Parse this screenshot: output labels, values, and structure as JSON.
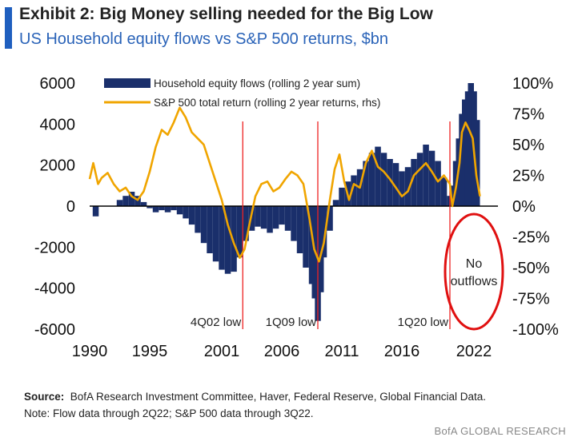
{
  "header": {
    "title": "Exhibit 2: Big Money selling needed for the Big Low",
    "subtitle": "US Household equity flows vs S&P 500 returns, $bn"
  },
  "footer": {
    "source_label": "Source:",
    "source_text": "BofA Research Investment Committee, Haver, Federal Reserve, Global Financial Data.",
    "note": "Note: Flow data through 2Q22;  S&P 500 data through 3Q22.",
    "brand": "BofA GLOBAL RESEARCH"
  },
  "chart_data": {
    "type": "bar",
    "title": "",
    "xlabel": "",
    "ylabel": "",
    "xlim": [
      1990,
      2024
    ],
    "ylim": [
      -6000,
      6000
    ],
    "y2lim": [
      -100,
      100
    ],
    "x_ticks": [
      "1990",
      "1995",
      "2001",
      "2006",
      "2011",
      "2016",
      "2022"
    ],
    "x_tick_values": [
      1990,
      1995,
      2001,
      2006,
      2011,
      2016,
      2022
    ],
    "y_ticks": [
      "6000",
      "4000",
      "2000",
      "0",
      "-2000",
      "-4000",
      "-6000"
    ],
    "y_tick_values": [
      6000,
      4000,
      2000,
      0,
      -2000,
      -4000,
      -6000
    ],
    "y2_ticks": [
      "100%",
      "75%",
      "50%",
      "25%",
      "0%",
      "-25%",
      "-50%",
      "-75%",
      "-100%"
    ],
    "y2_tick_values": [
      100,
      75,
      50,
      25,
      0,
      -25,
      -50,
      -75,
      -100
    ],
    "legend_position": "top-center",
    "series": [
      {
        "name": "Household equity flows (rolling 2 year sum)",
        "type": "bar",
        "axis": "left",
        "color": "#1a2f6b",
        "x": [
          1990.5,
          1991.5,
          1992.5,
          1993.0,
          1993.5,
          1994.0,
          1994.5,
          1995.0,
          1995.5,
          1996.0,
          1996.5,
          1997.0,
          1997.5,
          1998.0,
          1998.5,
          1999.0,
          1999.5,
          2000.0,
          2000.5,
          2001.0,
          2001.5,
          2002.0,
          2002.5,
          2003.0,
          2003.5,
          2004.0,
          2004.5,
          2005.0,
          2005.5,
          2006.0,
          2006.5,
          2007.0,
          2007.5,
          2008.0,
          2008.5,
          2008.75,
          2009.0,
          2009.25,
          2009.5,
          2010.0,
          2010.5,
          2011.0,
          2011.5,
          2012.0,
          2012.5,
          2013.0,
          2013.5,
          2014.0,
          2014.5,
          2015.0,
          2015.5,
          2016.0,
          2016.5,
          2017.0,
          2017.5,
          2018.0,
          2018.5,
          2019.0,
          2019.5,
          2020.0,
          2020.25,
          2020.5,
          2020.75,
          2021.0,
          2021.25,
          2021.5,
          2021.75,
          2022.0,
          2022.25
        ],
        "values": [
          -500,
          0,
          300,
          500,
          700,
          500,
          200,
          -100,
          -300,
          -200,
          -300,
          -200,
          -400,
          -600,
          -900,
          -1300,
          -1800,
          -2300,
          -2700,
          -3100,
          -3300,
          -3200,
          -2500,
          -1700,
          -1200,
          -1000,
          -1100,
          -1300,
          -1100,
          -900,
          -1200,
          -1700,
          -2300,
          -3000,
          -3800,
          -4500,
          -5600,
          -4200,
          -2500,
          -1200,
          300,
          900,
          1200,
          1500,
          1800,
          2200,
          2600,
          2900,
          2600,
          2300,
          2100,
          1700,
          1900,
          2300,
          2600,
          3000,
          2700,
          2200,
          1400,
          500,
          1000,
          2200,
          3300,
          4500,
          5200,
          5600,
          6000,
          5600,
          4200
        ]
      },
      {
        "name": "S&P 500 total return (rolling 2 year returns, rhs)",
        "type": "line",
        "axis": "right",
        "color": "#f0a500",
        "x": [
          1990.0,
          1990.3,
          1990.7,
          1991.0,
          1991.5,
          1992.0,
          1992.5,
          1993.0,
          1993.5,
          1994.0,
          1994.5,
          1995.0,
          1995.5,
          1996.0,
          1996.5,
          1997.0,
          1997.5,
          1998.0,
          1998.5,
          1999.0,
          1999.5,
          2000.0,
          2000.5,
          2001.0,
          2001.5,
          2002.0,
          2002.5,
          2002.9,
          2003.3,
          2003.8,
          2004.3,
          2004.8,
          2005.3,
          2005.8,
          2006.3,
          2006.8,
          2007.3,
          2007.8,
          2008.3,
          2008.7,
          2009.1,
          2009.5,
          2010.0,
          2010.4,
          2010.8,
          2011.2,
          2011.6,
          2012.0,
          2012.5,
          2013.0,
          2013.5,
          2014.0,
          2014.5,
          2015.0,
          2015.5,
          2016.0,
          2016.5,
          2017.0,
          2017.5,
          2018.0,
          2018.5,
          2019.0,
          2019.5,
          2020.0,
          2020.2,
          2020.5,
          2020.8,
          2021.0,
          2021.3,
          2021.6,
          2021.9,
          2022.2,
          2022.5
        ],
        "values": [
          22,
          35,
          18,
          23,
          27,
          18,
          12,
          15,
          8,
          5,
          12,
          28,
          48,
          62,
          58,
          68,
          80,
          72,
          60,
          55,
          50,
          35,
          20,
          5,
          -15,
          -30,
          -42,
          -35,
          -15,
          8,
          18,
          20,
          12,
          15,
          22,
          28,
          25,
          18,
          -10,
          -35,
          -45,
          -30,
          5,
          30,
          42,
          20,
          5,
          18,
          15,
          35,
          45,
          32,
          28,
          22,
          15,
          8,
          12,
          25,
          30,
          35,
          28,
          20,
          25,
          18,
          0,
          15,
          35,
          60,
          68,
          62,
          55,
          25,
          8
        ]
      }
    ],
    "annotations": {
      "event_lines": [
        {
          "x": 2002.75,
          "label": "4Q02 low"
        },
        {
          "x": 2009.0,
          "label": "1Q09 low"
        },
        {
          "x": 2020.0,
          "label": "1Q20 low"
        }
      ],
      "callout": {
        "line1": "No",
        "line2": "outflows",
        "color": "#e01010"
      }
    }
  }
}
